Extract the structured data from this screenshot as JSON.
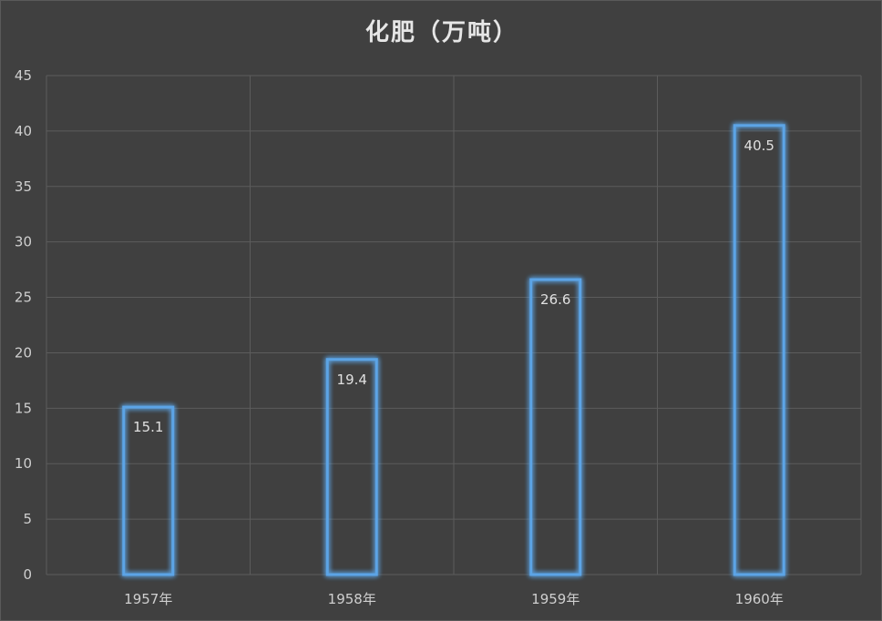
{
  "chart_data": {
    "type": "bar",
    "title": "化肥（万吨）",
    "xlabel": "",
    "ylabel": "",
    "categories": [
      "1957年",
      "1958年",
      "1959年",
      "1960年"
    ],
    "values": [
      15.1,
      19.4,
      26.6,
      40.5
    ],
    "data_labels": [
      "15.1",
      "19.4",
      "26.6",
      "40.5"
    ],
    "ylim": [
      0,
      45
    ],
    "yticks": [
      0,
      5,
      10,
      15,
      20,
      25,
      30,
      35,
      40,
      45
    ],
    "grid": true,
    "legend": "none",
    "colors": {
      "background": "#404040",
      "bar_outline": "#5ba4e6",
      "bar_glow": "#2f7fd0",
      "gridline": "#5c5c5c",
      "text": "#cfcfcf"
    }
  }
}
